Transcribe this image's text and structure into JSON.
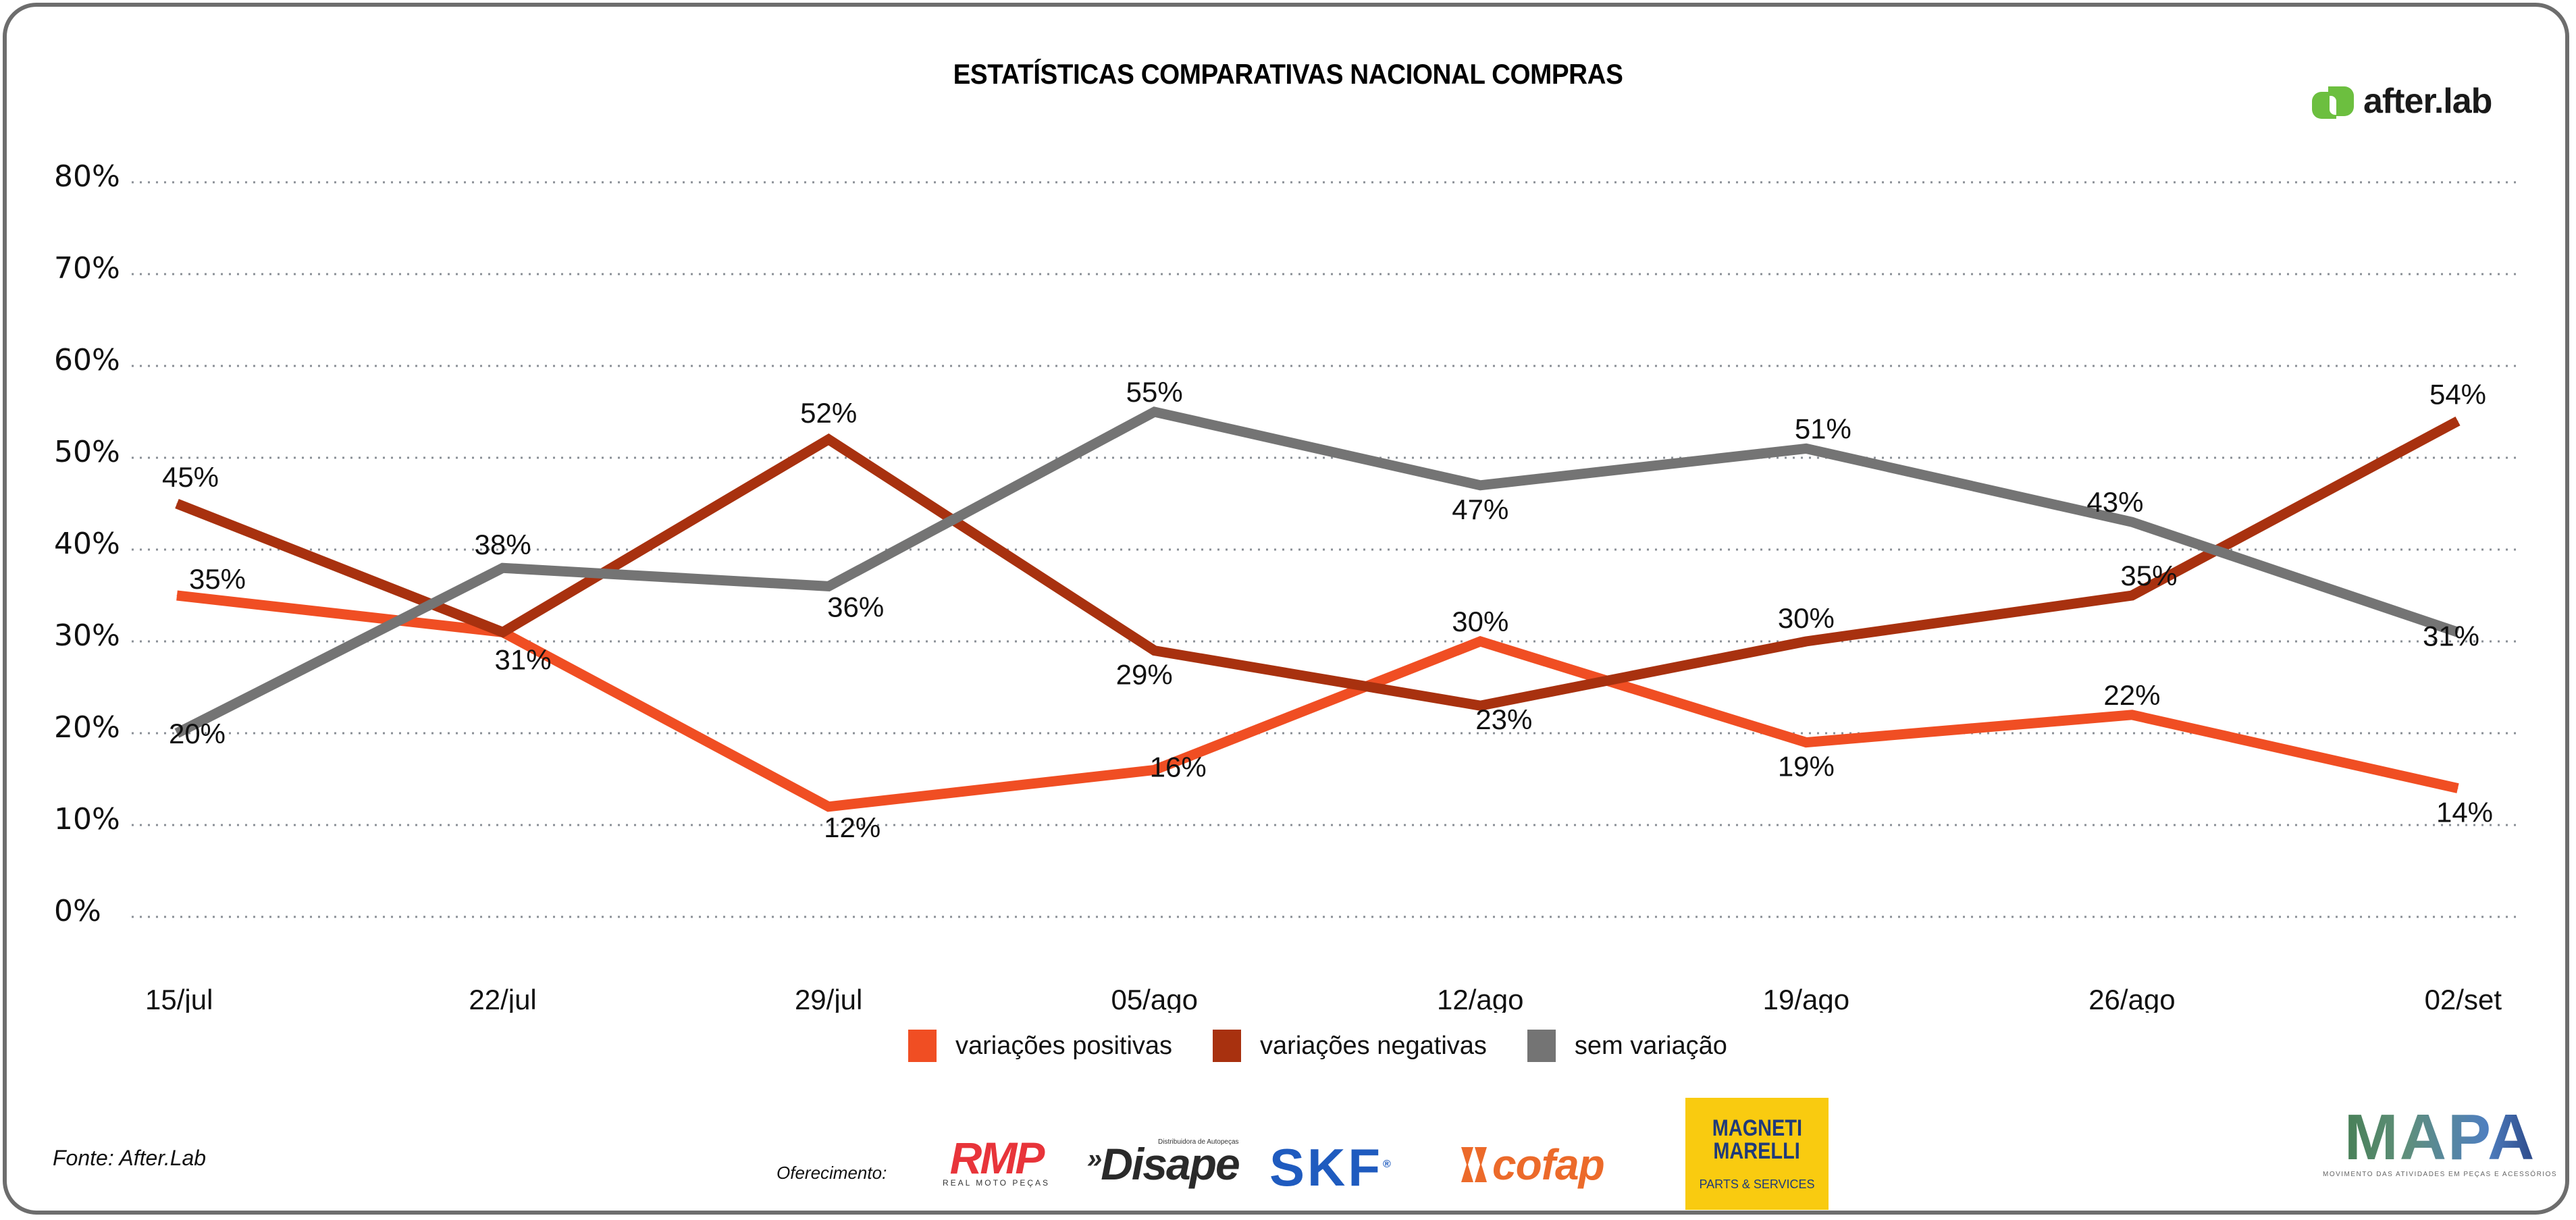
{
  "header": {
    "title": "ESTATÍSTICAS COMPARATIVAS NACIONAL COMPRAS",
    "brand_logo_text": "after.lab",
    "brand_color": "#6cbf3f"
  },
  "chart_data": {
    "type": "line",
    "title": "ESTATÍSTICAS COMPARATIVAS NACIONAL COMPRAS",
    "xlabel": "",
    "ylabel": "",
    "categories": [
      "15/jul",
      "22/jul",
      "29/jul",
      "05/ago",
      "12/ago",
      "19/ago",
      "26/ago",
      "02/set"
    ],
    "yticks": [
      "0%",
      "10%",
      "20%",
      "30%",
      "40%",
      "50%",
      "60%",
      "70%",
      "80%"
    ],
    "ylim": [
      0,
      80
    ],
    "grid": "horizontal-dotted",
    "legend_position": "bottom-center",
    "series": [
      {
        "name": "variações positivas",
        "color": "#f04e23",
        "values": [
          35,
          31,
          12,
          16,
          30,
          19,
          22,
          14
        ],
        "labels": [
          "35%",
          null,
          "12%",
          "16%",
          "30%",
          "19%",
          "22%",
          "14%"
        ]
      },
      {
        "name": "variações negativas",
        "color": "#a8310f",
        "values": [
          45,
          31,
          52,
          29,
          23,
          30,
          35,
          54
        ],
        "labels": [
          "45%",
          "31%",
          "52%",
          "29%",
          "23%",
          "30%",
          "35%",
          "54%"
        ]
      },
      {
        "name": "sem variação",
        "color": "#747474",
        "values": [
          20,
          38,
          36,
          55,
          47,
          51,
          43,
          31
        ],
        "labels": [
          "20%",
          "38%",
          "36%",
          "55%",
          "47%",
          "51%",
          "43%",
          "31%"
        ]
      }
    ]
  },
  "legend": {
    "items": [
      {
        "label": "variações positivas",
        "color": "#f04e23"
      },
      {
        "label": "variações negativas",
        "color": "#a8310f"
      },
      {
        "label": "sem variação",
        "color": "#747474"
      }
    ]
  },
  "footer": {
    "source": "Fonte: After.Lab",
    "offer_label": "Oferecimento:",
    "sponsors": {
      "rmp": {
        "name": "RMP",
        "tagline": "REAL MOTO PEÇAS"
      },
      "disape": {
        "name": "Disape",
        "tagline": "Distribuidora de Autopeças"
      },
      "skf": {
        "name": "SKF",
        "mark": "®"
      },
      "cofap": {
        "name": "cofap"
      },
      "marelli": {
        "line1": "MAGNETI",
        "line2": "MARELLI",
        "tagline": "PARTS & SERVICES"
      }
    },
    "mapa": {
      "name": "MAPA",
      "tagline": "MOVIMENTO DAS ATIVIDADES EM PEÇAS E ACESSÓRIOS"
    }
  }
}
